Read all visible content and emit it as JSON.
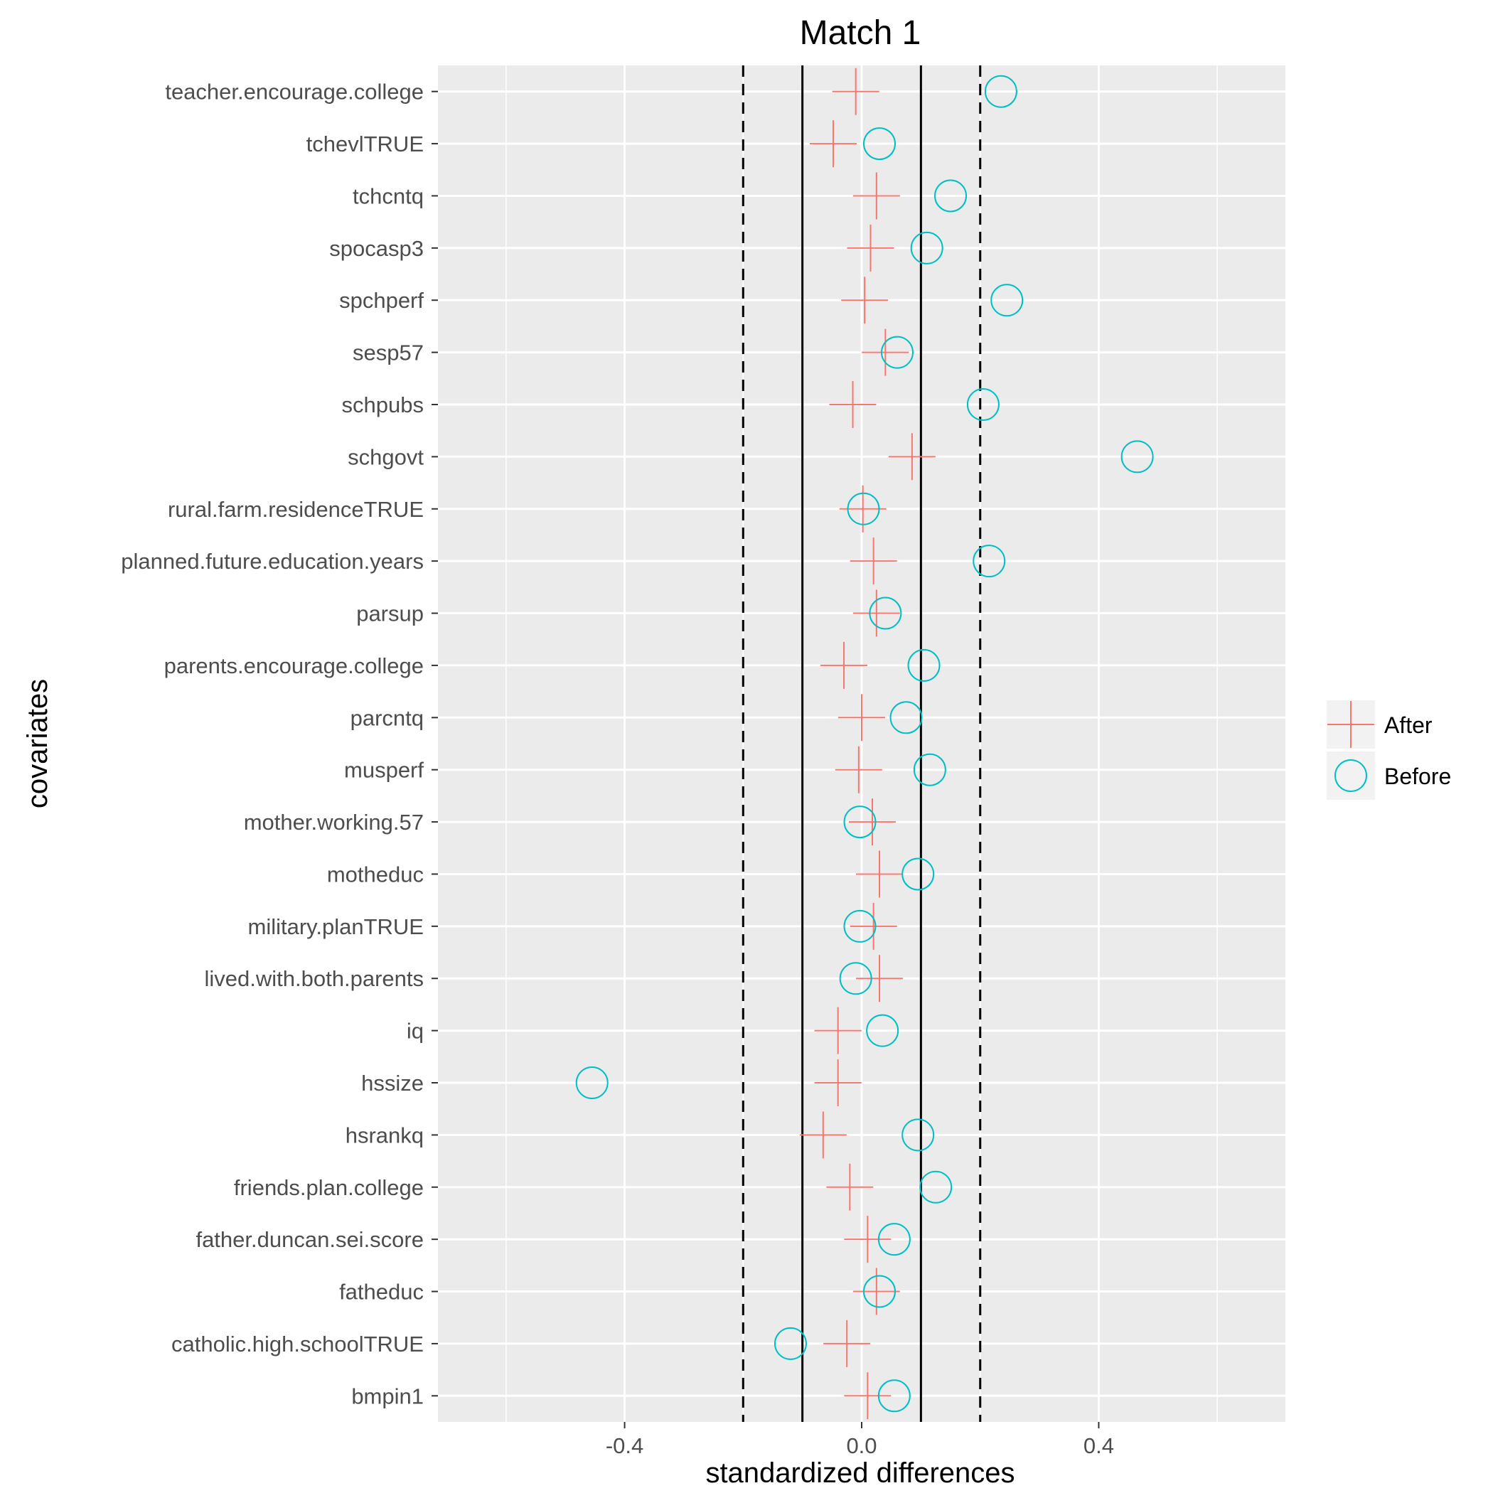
{
  "chart_data": {
    "type": "scatter",
    "title": "Match 1",
    "xlabel": "standardized differences",
    "ylabel": "covariates",
    "xlim": [
      -0.715,
      0.715
    ],
    "x_ticks": [
      -0.4,
      0.0,
      0.4
    ],
    "x_tick_labels": [
      "-0.4",
      "0.0",
      "0.4"
    ],
    "x_minor_ticks": [
      -0.6,
      -0.2,
      0.2,
      0.6
    ],
    "grid": true,
    "legend_position": "right",
    "reference_lines": [
      {
        "x": -0.2,
        "style": "dashed"
      },
      {
        "x": -0.1,
        "style": "solid"
      },
      {
        "x": 0.1,
        "style": "solid"
      },
      {
        "x": 0.2,
        "style": "dashed"
      }
    ],
    "categories": [
      "bmpin1",
      "catholic.high.schoolTRUE",
      "fatheduc",
      "father.duncan.sei.score",
      "friends.plan.college",
      "hsrankq",
      "hssize",
      "iq",
      "lived.with.both.parents",
      "military.planTRUE",
      "motheduc",
      "mother.working.57",
      "musperf",
      "parcntq",
      "parents.encourage.college",
      "parsup",
      "planned.future.education.years",
      "rural.farm.residenceTRUE",
      "schgovt",
      "schpubs",
      "sesp57",
      "spchperf",
      "spocasp3",
      "tchcntq",
      "tchevlTRUE",
      "teacher.encourage.college"
    ],
    "series": [
      {
        "name": "After",
        "marker": "cross",
        "color": "#F8766D",
        "values": [
          0.01,
          -0.025,
          0.025,
          0.01,
          -0.02,
          -0.065,
          -0.04,
          -0.04,
          0.03,
          0.02,
          0.03,
          0.018,
          -0.005,
          0.0,
          -0.03,
          0.025,
          0.02,
          0.002,
          0.085,
          -0.015,
          0.04,
          0.005,
          0.015,
          0.025,
          -0.048,
          -0.01
        ]
      },
      {
        "name": "Before",
        "marker": "circle",
        "color": "#00BFC4",
        "values": [
          0.055,
          -0.12,
          0.03,
          0.055,
          0.125,
          0.095,
          -0.455,
          0.035,
          -0.01,
          -0.003,
          0.095,
          -0.003,
          0.115,
          0.075,
          0.105,
          0.04,
          0.215,
          0.003,
          0.465,
          0.205,
          0.06,
          0.245,
          0.11,
          0.15,
          0.03,
          0.235
        ]
      }
    ]
  }
}
